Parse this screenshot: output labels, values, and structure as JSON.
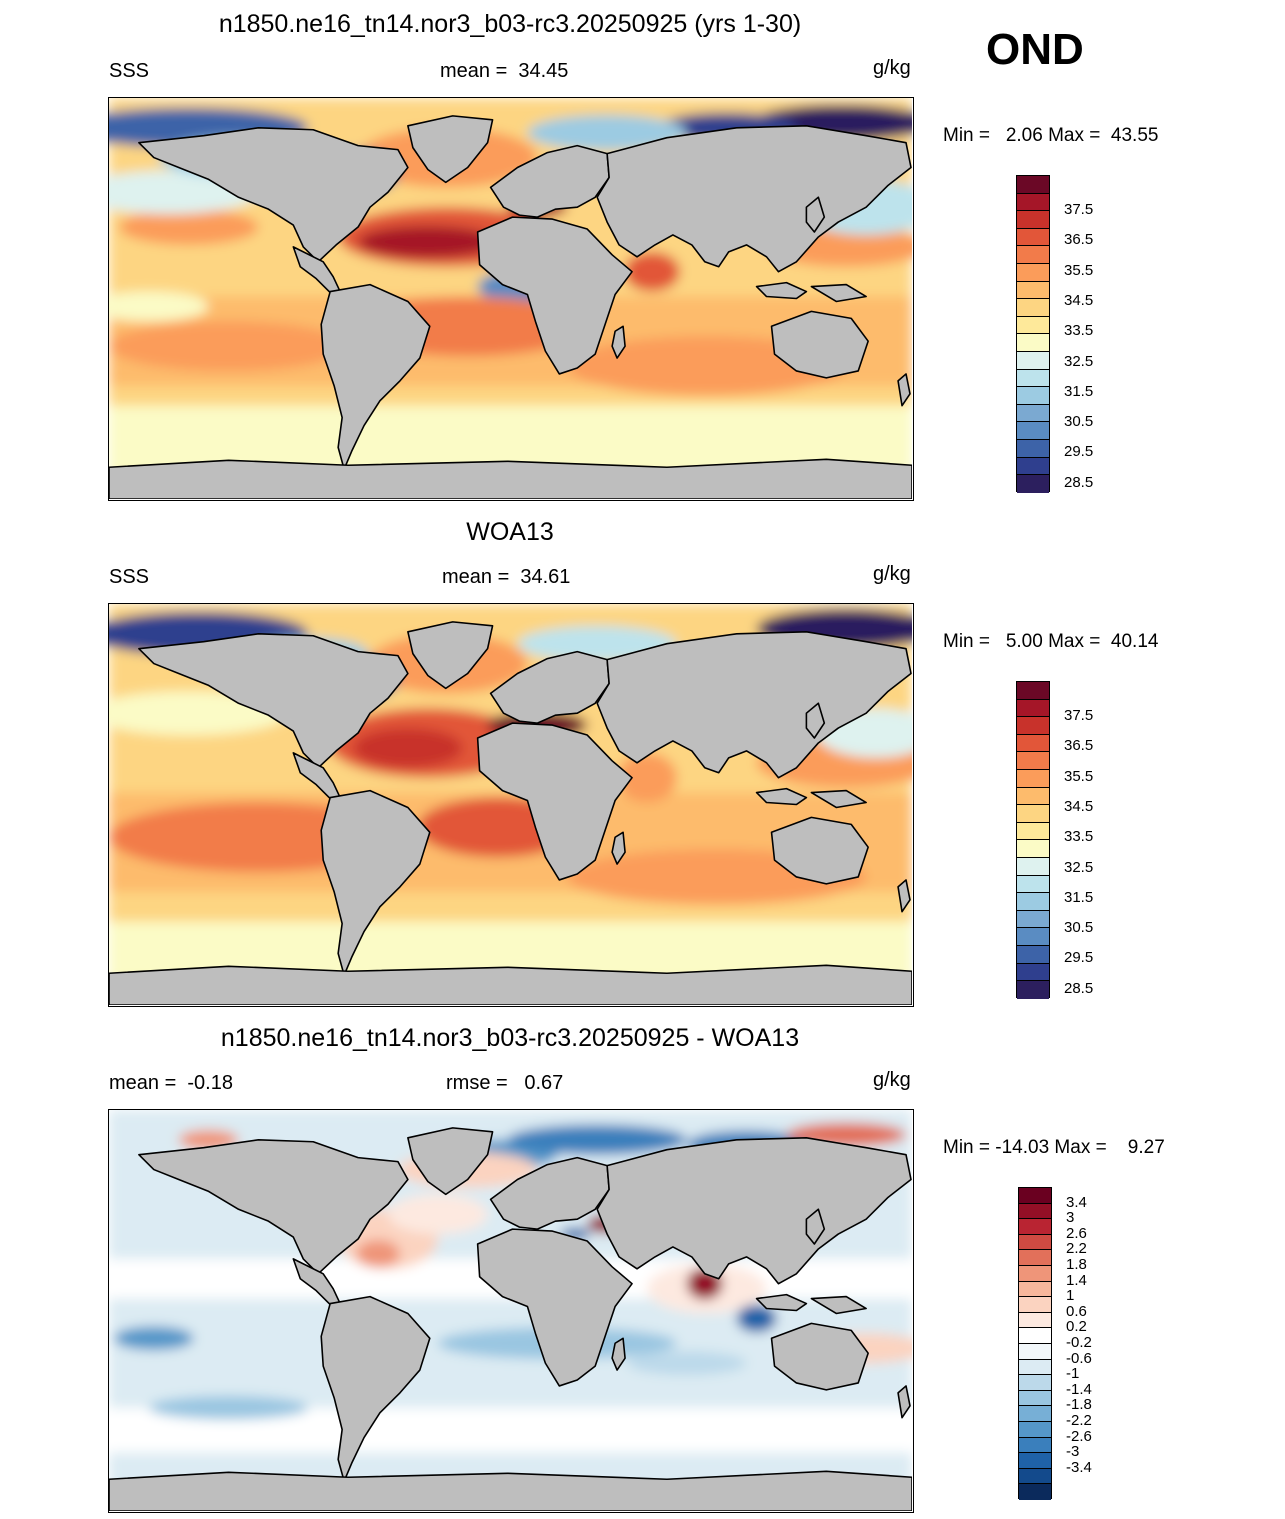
{
  "season_label": "OND",
  "units": "g/kg",
  "panels": [
    {
      "id": "model",
      "title": "n1850.ne16_tn14.nor3_b03-rc3.20250925 (yrs 1-30)",
      "left_label": "SSS",
      "stat_label": "mean =  34.45",
      "minmax": "Min =   2.06 Max =  43.55",
      "colorbar": {
        "colors": [
          "#2c1f5e",
          "#2f3f8e",
          "#3d63a8",
          "#5a8cc2",
          "#7ba9d1",
          "#9ccbe2",
          "#bde3ec",
          "#def2ef",
          "#fbfbc6",
          "#fee99a",
          "#fdd582",
          "#fdbb6c",
          "#fb9c5a",
          "#f27b4a",
          "#e25639",
          "#c8322b",
          "#a51628",
          "#6b0826"
        ],
        "tick_labels": [
          "37.5",
          "36.5",
          "35.5",
          "34.5",
          "33.5",
          "32.5",
          "31.5",
          "30.5",
          "29.5",
          "28.5"
        ]
      }
    },
    {
      "id": "obs",
      "title": "WOA13",
      "left_label": "SSS",
      "stat_label": "mean =  34.61",
      "minmax": "Min =   5.00 Max =  40.14",
      "colorbar": {
        "colors": [
          "#2c1f5e",
          "#2f3f8e",
          "#3d63a8",
          "#5a8cc2",
          "#7ba9d1",
          "#9ccbe2",
          "#bde3ec",
          "#def2ef",
          "#fbfbc6",
          "#fee99a",
          "#fdd582",
          "#fdbb6c",
          "#fb9c5a",
          "#f27b4a",
          "#e25639",
          "#c8322b",
          "#a51628",
          "#6b0826"
        ],
        "tick_labels": [
          "37.5",
          "36.5",
          "35.5",
          "34.5",
          "33.5",
          "32.5",
          "31.5",
          "30.5",
          "29.5",
          "28.5"
        ]
      }
    },
    {
      "id": "diff",
      "title": "n1850.ne16_tn14.nor3_b03-rc3.20250925 - WOA13",
      "left_label": "mean =  -0.18",
      "stat_label": "rmse =   0.67",
      "minmax": "Min = -14.03 Max =    9.27",
      "colorbar": {
        "colors": [
          "#0b2a5c",
          "#134a8c",
          "#1f62a8",
          "#3a7fbc",
          "#5597c9",
          "#77afd6",
          "#9ac6e1",
          "#bcd9ea",
          "#dcebf3",
          "#f2f7fa",
          "#ffffff",
          "#fde9e0",
          "#fbd3c0",
          "#f7b79c",
          "#ef9579",
          "#e2705a",
          "#cf4a42",
          "#b92432",
          "#930f26",
          "#6a0020"
        ],
        "tick_labels": [
          "3.4",
          "3",
          "2.6",
          "2.2",
          "1.8",
          "1.4",
          "1",
          "0.6",
          "0.2",
          "-0.2",
          "-0.6",
          "-1",
          "-1.4",
          "-1.8",
          "-2.2",
          "-2.6",
          "-3",
          "-3.4"
        ]
      }
    }
  ]
}
